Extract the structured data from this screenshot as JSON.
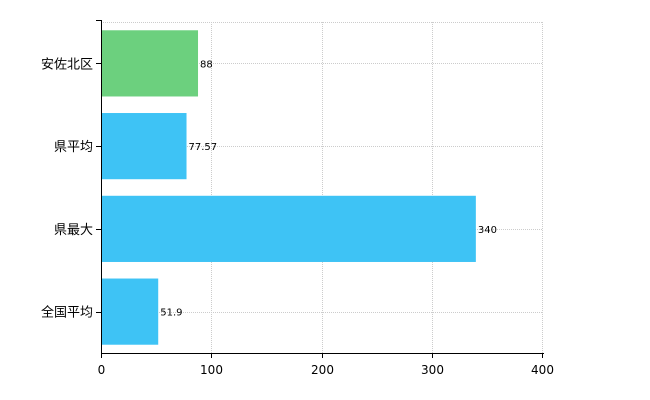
{
  "chart_data": {
    "type": "bar",
    "orientation": "horizontal",
    "categories": [
      "安佐北区",
      "県平均",
      "県最大",
      "全国平均"
    ],
    "values": [
      88,
      77.57,
      340,
      51.9
    ],
    "data_labels": [
      "88",
      "77.57",
      "340",
      "51.9"
    ],
    "bar_colors": [
      "#6cd07e",
      "#3ec3f5",
      "#3ec3f5",
      "#3ec3f5"
    ],
    "xlim": [
      0,
      400
    ],
    "xticks": [
      0,
      100,
      200,
      300,
      400
    ],
    "xtick_labels": [
      "0",
      "100",
      "200",
      "300",
      "400"
    ],
    "grid": true,
    "legend": "none",
    "title": "",
    "xlabel": "",
    "ylabel": ""
  }
}
